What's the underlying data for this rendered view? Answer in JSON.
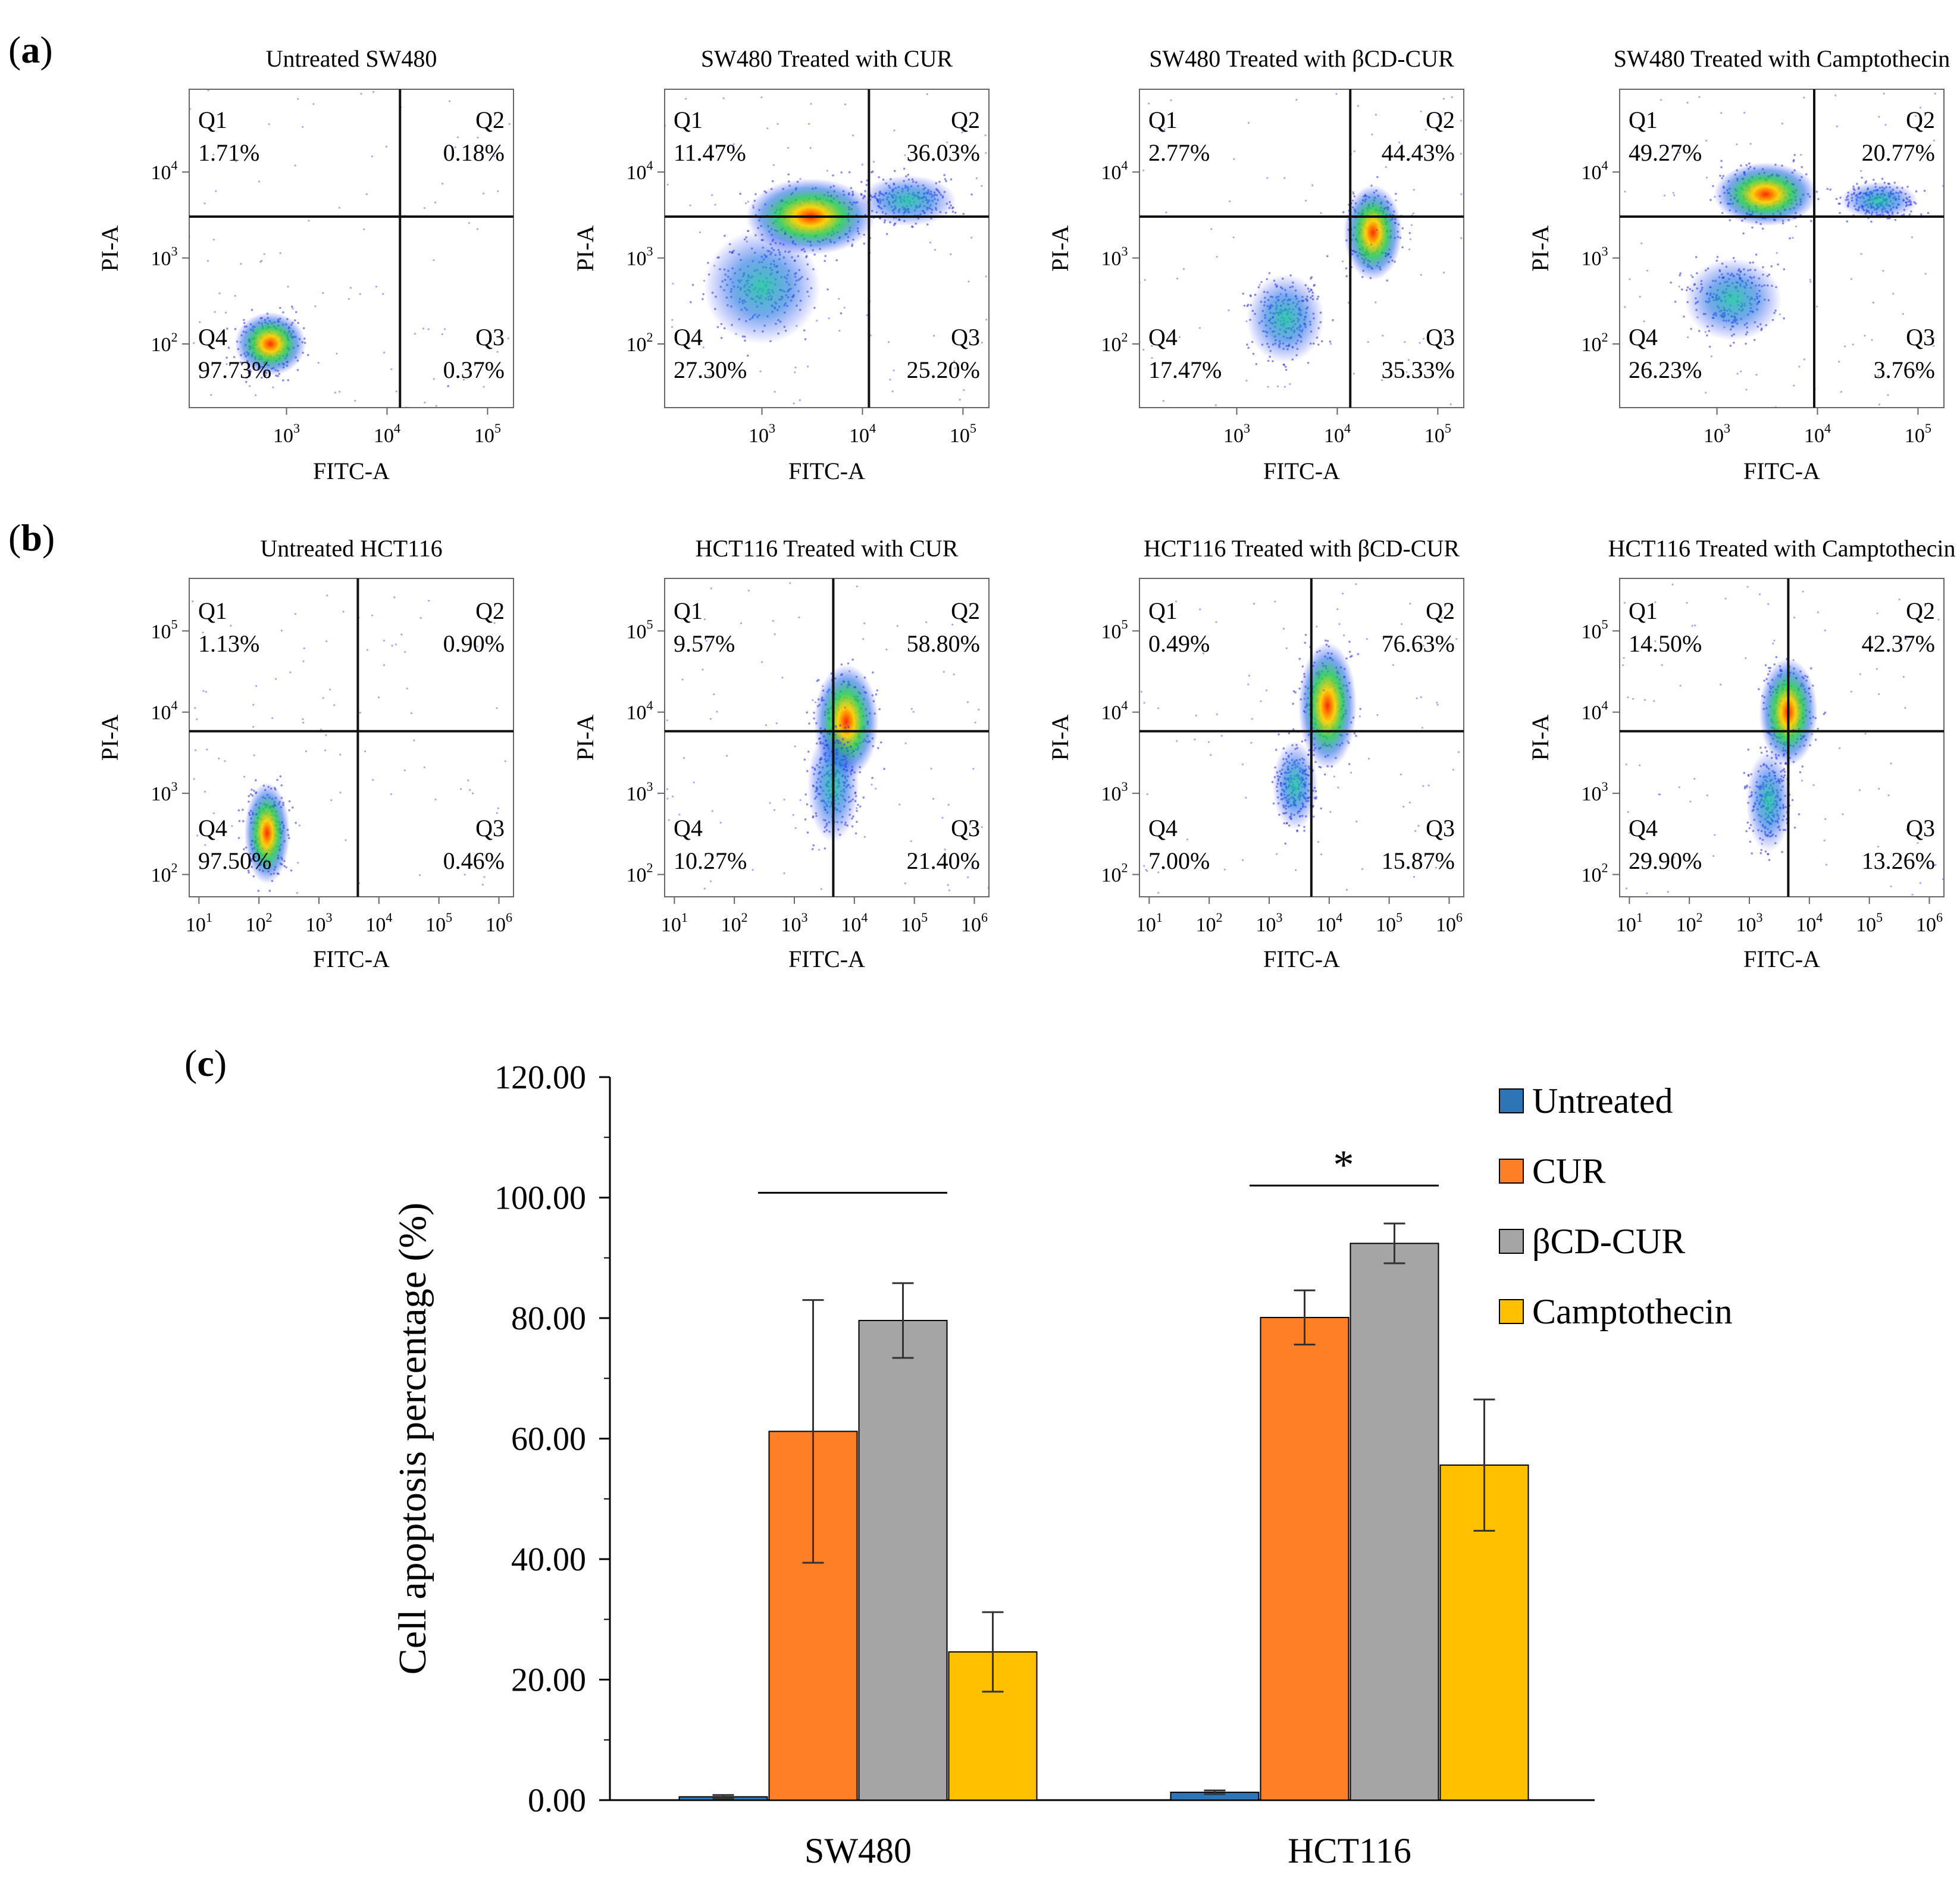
{
  "panels": [
    {
      "letter": "a",
      "plots": [
        {
          "title": "Untreated SW480",
          "q": [
            {
              "n": "Q1",
              "p": "1.71%"
            },
            {
              "n": "Q2",
              "p": "0.18%"
            },
            {
              "n": "Q3",
              "p": "0.37%"
            },
            {
              "n": "Q4",
              "p": "97.73%"
            }
          ],
          "xlabel": "FITC-A",
          "ylabel": "PI-A",
          "xticks": [
            {
              "base": "10",
              "exp": "3"
            },
            {
              "base": "10",
              "exp": "4"
            },
            {
              "base": "10",
              "exp": "5"
            }
          ],
          "yticks": [
            {
              "base": "10",
              "exp": "2"
            },
            {
              "base": "10",
              "exp": "3"
            },
            {
              "base": "10",
              "exp": "4"
            }
          ]
        },
        {
          "title": "SW480 Treated with CUR",
          "q": [
            {
              "n": "Q1",
              "p": "11.47%"
            },
            {
              "n": "Q2",
              "p": "36.03%"
            },
            {
              "n": "Q3",
              "p": "25.20%"
            },
            {
              "n": "Q4",
              "p": "27.30%"
            }
          ],
          "xlabel": "FITC-A",
          "ylabel": "PI-A",
          "xticks": [
            {
              "base": "10",
              "exp": "3"
            },
            {
              "base": "10",
              "exp": "4"
            },
            {
              "base": "10",
              "exp": "5"
            }
          ],
          "yticks": [
            {
              "base": "10",
              "exp": "2"
            },
            {
              "base": "10",
              "exp": "3"
            },
            {
              "base": "10",
              "exp": "4"
            }
          ]
        },
        {
          "title": "SW480 Treated with βCD-CUR",
          "q": [
            {
              "n": "Q1",
              "p": "2.77%"
            },
            {
              "n": "Q2",
              "p": "44.43%"
            },
            {
              "n": "Q3",
              "p": "35.33%"
            },
            {
              "n": "Q4",
              "p": "17.47%"
            }
          ],
          "xlabel": "FITC-A",
          "ylabel": "PI-A",
          "xticks": [
            {
              "base": "10",
              "exp": "3"
            },
            {
              "base": "10",
              "exp": "4"
            },
            {
              "base": "10",
              "exp": "5"
            }
          ],
          "yticks": [
            {
              "base": "10",
              "exp": "2"
            },
            {
              "base": "10",
              "exp": "3"
            },
            {
              "base": "10",
              "exp": "4"
            }
          ]
        },
        {
          "title": "SW480 Treated with Camptothecin",
          "q": [
            {
              "n": "Q1",
              "p": "49.27%"
            },
            {
              "n": "Q2",
              "p": "20.77%"
            },
            {
              "n": "Q3",
              "p": "3.76%"
            },
            {
              "n": "Q4",
              "p": "26.23%"
            }
          ],
          "xlabel": "FITC-A",
          "ylabel": "PI-A",
          "xticks": [
            {
              "base": "10",
              "exp": "3"
            },
            {
              "base": "10",
              "exp": "4"
            },
            {
              "base": "10",
              "exp": "5"
            }
          ],
          "yticks": [
            {
              "base": "10",
              "exp": "2"
            },
            {
              "base": "10",
              "exp": "3"
            },
            {
              "base": "10",
              "exp": "4"
            }
          ]
        }
      ]
    },
    {
      "letter": "b",
      "plots": [
        {
          "title": "Untreated HCT116",
          "q": [
            {
              "n": "Q1",
              "p": "1.13%"
            },
            {
              "n": "Q2",
              "p": "0.90%"
            },
            {
              "n": "Q3",
              "p": "0.46%"
            },
            {
              "n": "Q4",
              "p": "97.50%"
            }
          ],
          "xlabel": "FITC-A",
          "ylabel": "PI-A",
          "xticks": [
            {
              "base": "10",
              "exp": "1"
            },
            {
              "base": "10",
              "exp": "2"
            },
            {
              "base": "10",
              "exp": "3"
            },
            {
              "base": "10",
              "exp": "4"
            },
            {
              "base": "10",
              "exp": "5"
            },
            {
              "base": "10",
              "exp": "6"
            }
          ],
          "yticks": [
            {
              "base": "10",
              "exp": "2"
            },
            {
              "base": "10",
              "exp": "3"
            },
            {
              "base": "10",
              "exp": "4"
            },
            {
              "base": "10",
              "exp": "5"
            }
          ]
        },
        {
          "title": "HCT116 Treated with CUR",
          "q": [
            {
              "n": "Q1",
              "p": "9.57%"
            },
            {
              "n": "Q2",
              "p": "58.80%"
            },
            {
              "n": "Q3",
              "p": "21.40%"
            },
            {
              "n": "Q4",
              "p": "10.27%"
            }
          ],
          "xlabel": "FITC-A",
          "ylabel": "PI-A",
          "xticks": [
            {
              "base": "10",
              "exp": "1"
            },
            {
              "base": "10",
              "exp": "2"
            },
            {
              "base": "10",
              "exp": "3"
            },
            {
              "base": "10",
              "exp": "4"
            },
            {
              "base": "10",
              "exp": "5"
            },
            {
              "base": "10",
              "exp": "6"
            }
          ],
          "yticks": [
            {
              "base": "10",
              "exp": "2"
            },
            {
              "base": "10",
              "exp": "3"
            },
            {
              "base": "10",
              "exp": "4"
            },
            {
              "base": "10",
              "exp": "5"
            }
          ]
        },
        {
          "title": "HCT116 Treated with βCD-CUR",
          "q": [
            {
              "n": "Q1",
              "p": "0.49%"
            },
            {
              "n": "Q2",
              "p": "76.63%"
            },
            {
              "n": "Q3",
              "p": "15.87%"
            },
            {
              "n": "Q4",
              "p": "7.00%"
            }
          ],
          "xlabel": "FITC-A",
          "ylabel": "PI-A",
          "xticks": [
            {
              "base": "10",
              "exp": "1"
            },
            {
              "base": "10",
              "exp": "2"
            },
            {
              "base": "10",
              "exp": "3"
            },
            {
              "base": "10",
              "exp": "4"
            },
            {
              "base": "10",
              "exp": "5"
            },
            {
              "base": "10",
              "exp": "6"
            }
          ],
          "yticks": [
            {
              "base": "10",
              "exp": "2"
            },
            {
              "base": "10",
              "exp": "3"
            },
            {
              "base": "10",
              "exp": "4"
            },
            {
              "base": "10",
              "exp": "5"
            }
          ]
        },
        {
          "title": "HCT116 Treated with Camptothecin",
          "q": [
            {
              "n": "Q1",
              "p": "14.50%"
            },
            {
              "n": "Q2",
              "p": "42.37%"
            },
            {
              "n": "Q3",
              "p": "13.26%"
            },
            {
              "n": "Q4",
              "p": "29.90%"
            }
          ],
          "xlabel": "FITC-A",
          "ylabel": "PI-A",
          "xticks": [
            {
              "base": "10",
              "exp": "1"
            },
            {
              "base": "10",
              "exp": "2"
            },
            {
              "base": "10",
              "exp": "3"
            },
            {
              "base": "10",
              "exp": "4"
            },
            {
              "base": "10",
              "exp": "5"
            },
            {
              "base": "10",
              "exp": "6"
            }
          ],
          "yticks": [
            {
              "base": "10",
              "exp": "2"
            },
            {
              "base": "10",
              "exp": "3"
            },
            {
              "base": "10",
              "exp": "4"
            },
            {
              "base": "10",
              "exp": "5"
            }
          ]
        }
      ]
    }
  ],
  "chart_data": {
    "type": "bar",
    "panel_letter": "c",
    "categories": [
      "SW480",
      "HCT116"
    ],
    "ylabel": "Cell apoptosis percentage  (%)",
    "ylim": [
      0,
      120
    ],
    "yticks": [
      "0.00",
      "20.00",
      "40.00",
      "60.00",
      "80.00",
      "100.00",
      "120.00"
    ],
    "series": [
      {
        "name": "Untreated",
        "color": "#2e75b6",
        "values": [
          0.55,
          1.3
        ],
        "errors": [
          0.3,
          0.3
        ]
      },
      {
        "name": "CUR",
        "color": "#ff7f27",
        "values": [
          61.2,
          80.1
        ],
        "errors": [
          21.8,
          4.5
        ]
      },
      {
        "name": "βCD-CUR",
        "color": "#a5a5a5",
        "values": [
          79.6,
          92.4
        ],
        "errors": [
          6.2,
          3.3
        ]
      },
      {
        "name": "Camptothecin",
        "color": "#ffc000",
        "values": [
          24.6,
          55.6
        ],
        "errors": [
          6.6,
          10.9
        ]
      }
    ],
    "significance": [
      {
        "category": "SW480",
        "y": 100.8,
        "label": ""
      },
      {
        "category": "HCT116",
        "y": 102.0,
        "label": "*"
      }
    ]
  }
}
